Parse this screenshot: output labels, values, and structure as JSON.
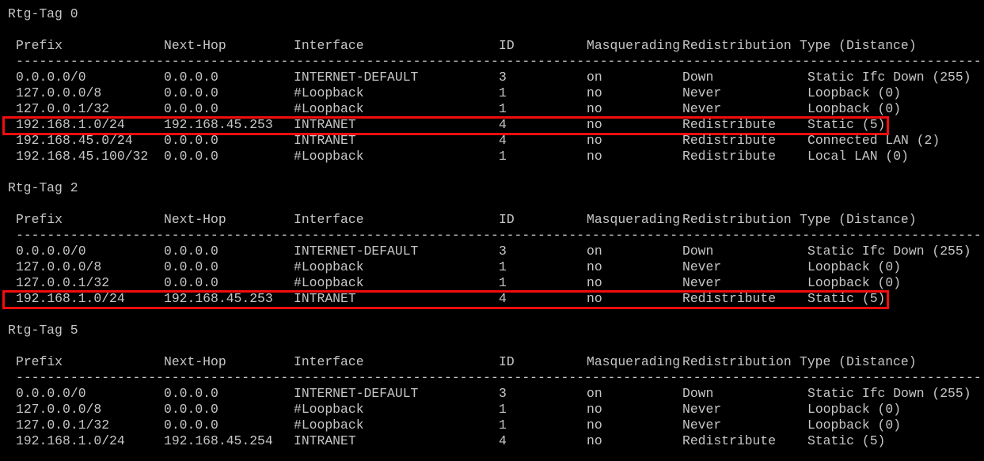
{
  "terminal": {
    "background_color": "#000000",
    "text_color": "#c6c6c6",
    "highlight_color": "#f20d0d"
  },
  "columns": [
    "Prefix",
    "Next-Hop",
    "Interface",
    "ID",
    "Masquerading",
    "Redistribution",
    "Type (Distance)"
  ],
  "separator": "----------------------------------------------------------------------------------------------------------------------------",
  "sections": [
    {
      "title": "Rtg-Tag 0",
      "rows": [
        {
          "prefix": "0.0.0.0/0",
          "next_hop": "0.0.0.0",
          "interface": "INTERNET-DEFAULT",
          "id": "3",
          "masquerading": "on",
          "redistribution": "Down",
          "type": "Static Ifc Down (255)",
          "highlighted": false
        },
        {
          "prefix": "127.0.0.0/8",
          "next_hop": "0.0.0.0",
          "interface": "#Loopback",
          "id": "1",
          "masquerading": "no",
          "redistribution": "Never",
          "type": "Loopback (0)",
          "highlighted": false
        },
        {
          "prefix": "127.0.0.1/32",
          "next_hop": "0.0.0.0",
          "interface": "#Loopback",
          "id": "1",
          "masquerading": "no",
          "redistribution": "Never",
          "type": "Loopback (0)",
          "highlighted": false
        },
        {
          "prefix": "192.168.1.0/24",
          "next_hop": "192.168.45.253",
          "interface": "INTRANET",
          "id": "4",
          "masquerading": "no",
          "redistribution": "Redistribute",
          "type": "Static (5)",
          "highlighted": true
        },
        {
          "prefix": "192.168.45.0/24",
          "next_hop": "0.0.0.0",
          "interface": "INTRANET",
          "id": "4",
          "masquerading": "no",
          "redistribution": "Redistribute",
          "type": "Connected LAN (2)",
          "highlighted": false
        },
        {
          "prefix": "192.168.45.100/32",
          "next_hop": "0.0.0.0",
          "interface": "#Loopback",
          "id": "1",
          "masquerading": "no",
          "redistribution": "Redistribute",
          "type": "Local LAN (0)",
          "highlighted": false
        }
      ]
    },
    {
      "title": "Rtg-Tag 2",
      "rows": [
        {
          "prefix": "0.0.0.0/0",
          "next_hop": "0.0.0.0",
          "interface": "INTERNET-DEFAULT",
          "id": "3",
          "masquerading": "on",
          "redistribution": "Down",
          "type": "Static Ifc Down (255)",
          "highlighted": false
        },
        {
          "prefix": "127.0.0.0/8",
          "next_hop": "0.0.0.0",
          "interface": "#Loopback",
          "id": "1",
          "masquerading": "no",
          "redistribution": "Never",
          "type": "Loopback (0)",
          "highlighted": false
        },
        {
          "prefix": "127.0.0.1/32",
          "next_hop": "0.0.0.0",
          "interface": "#Loopback",
          "id": "1",
          "masquerading": "no",
          "redistribution": "Never",
          "type": "Loopback (0)",
          "highlighted": false
        },
        {
          "prefix": "192.168.1.0/24",
          "next_hop": "192.168.45.253",
          "interface": "INTRANET",
          "id": "4",
          "masquerading": "no",
          "redistribution": "Redistribute",
          "type": "Static (5)",
          "highlighted": true
        }
      ]
    },
    {
      "title": "Rtg-Tag 5",
      "rows": [
        {
          "prefix": "0.0.0.0/0",
          "next_hop": "0.0.0.0",
          "interface": "INTERNET-DEFAULT",
          "id": "3",
          "masquerading": "on",
          "redistribution": "Down",
          "type": "Static Ifc Down (255)",
          "highlighted": false
        },
        {
          "prefix": "127.0.0.0/8",
          "next_hop": "0.0.0.0",
          "interface": "#Loopback",
          "id": "1",
          "masquerading": "no",
          "redistribution": "Never",
          "type": "Loopback (0)",
          "highlighted": false
        },
        {
          "prefix": "127.0.0.1/32",
          "next_hop": "0.0.0.0",
          "interface": "#Loopback",
          "id": "1",
          "masquerading": "no",
          "redistribution": "Never",
          "type": "Loopback (0)",
          "highlighted": false
        },
        {
          "prefix": "192.168.1.0/24",
          "next_hop": "192.168.45.254",
          "interface": "INTRANET",
          "id": "4",
          "masquerading": "no",
          "redistribution": "Redistribute",
          "type": "Static (5)",
          "highlighted": false
        }
      ]
    }
  ]
}
